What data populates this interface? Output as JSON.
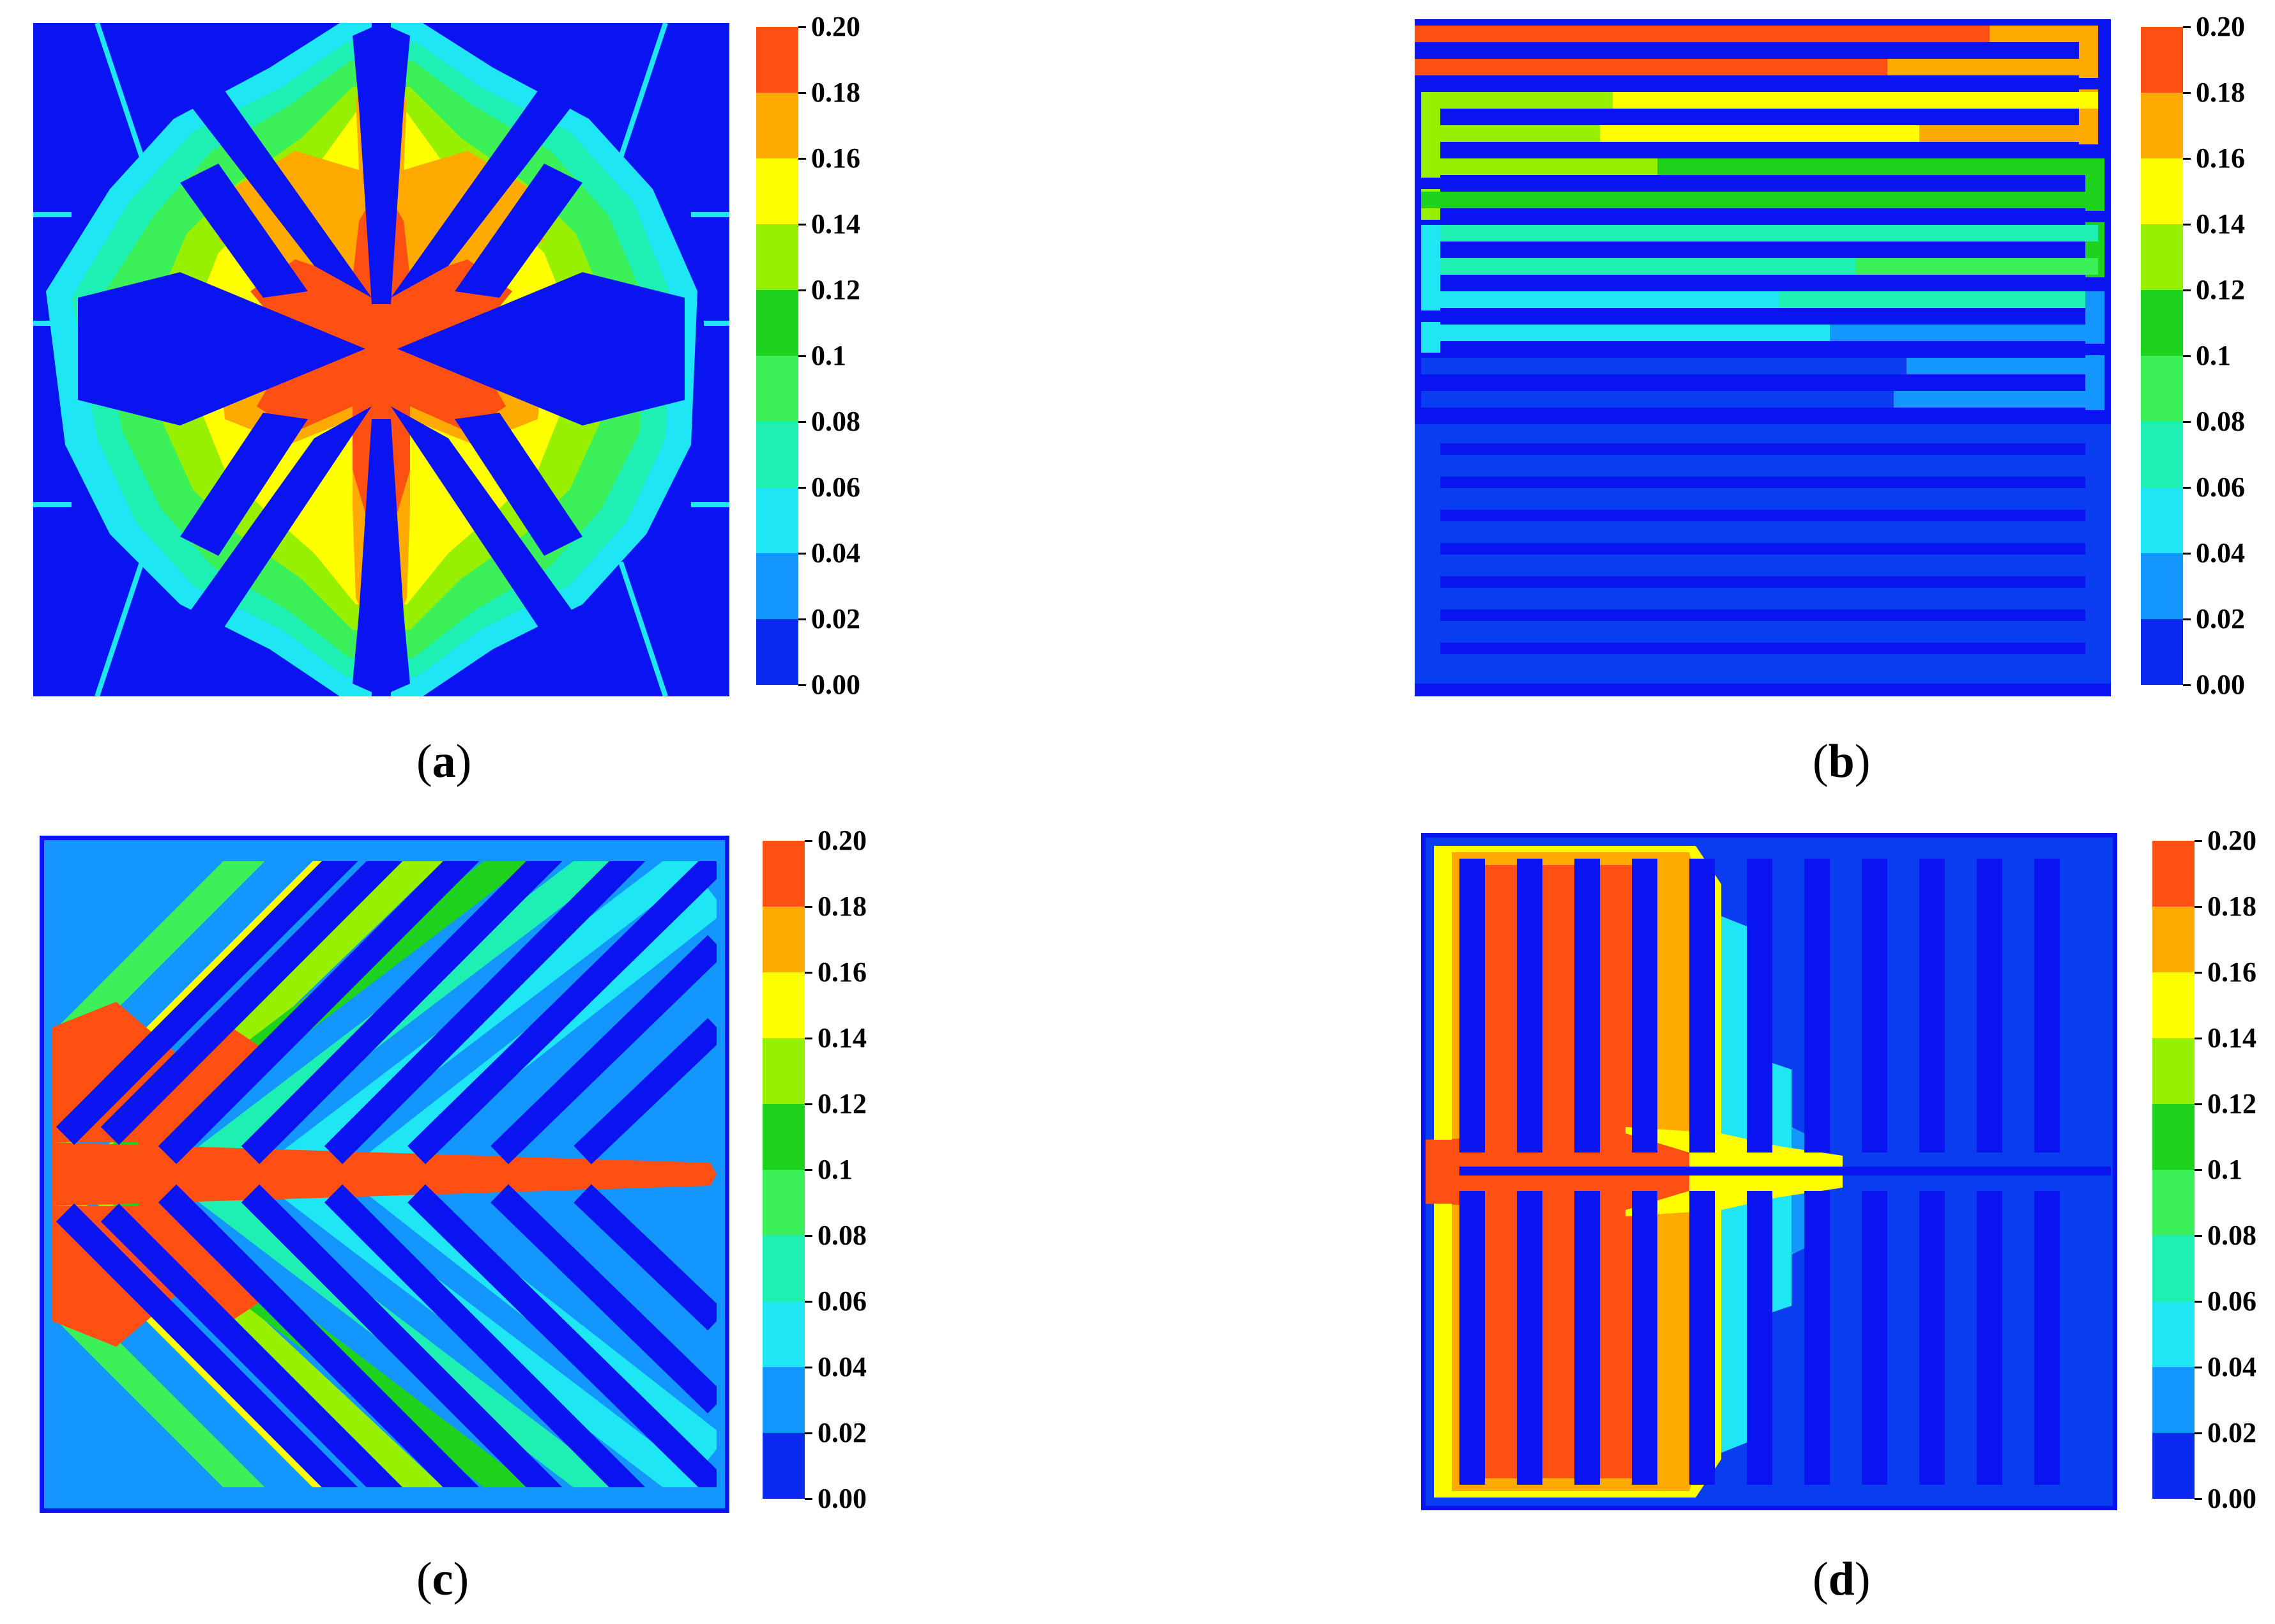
{
  "colorbar": {
    "ticks": [
      "0.00",
      "0.02",
      "0.04",
      "0.06",
      "0.08",
      "0.1",
      "0.12",
      "0.14",
      "0.16",
      "0.18",
      "0.20"
    ],
    "colors": [
      "#0a29f0",
      "#1496ff",
      "#1ee6f5",
      "#1ef0b4",
      "#3cf05a",
      "#1ed21e",
      "#96f000",
      "#ffff00",
      "#ffaa00",
      "#ff5014"
    ]
  },
  "palette": {
    "dark": "#0a14f0",
    "mid": "#0a3cf0",
    "outline": "#1ee6f5"
  },
  "panels": [
    {
      "id": "a",
      "caption_open": "(",
      "caption_letter": "a",
      "caption_close": ")"
    },
    {
      "id": "b",
      "caption_open": "(",
      "caption_letter": "b",
      "caption_close": ")"
    },
    {
      "id": "c",
      "caption_open": "(",
      "caption_letter": "c",
      "caption_close": ")"
    },
    {
      "id": "d",
      "caption_open": "(",
      "caption_letter": "d",
      "caption_close": ")"
    }
  ]
}
